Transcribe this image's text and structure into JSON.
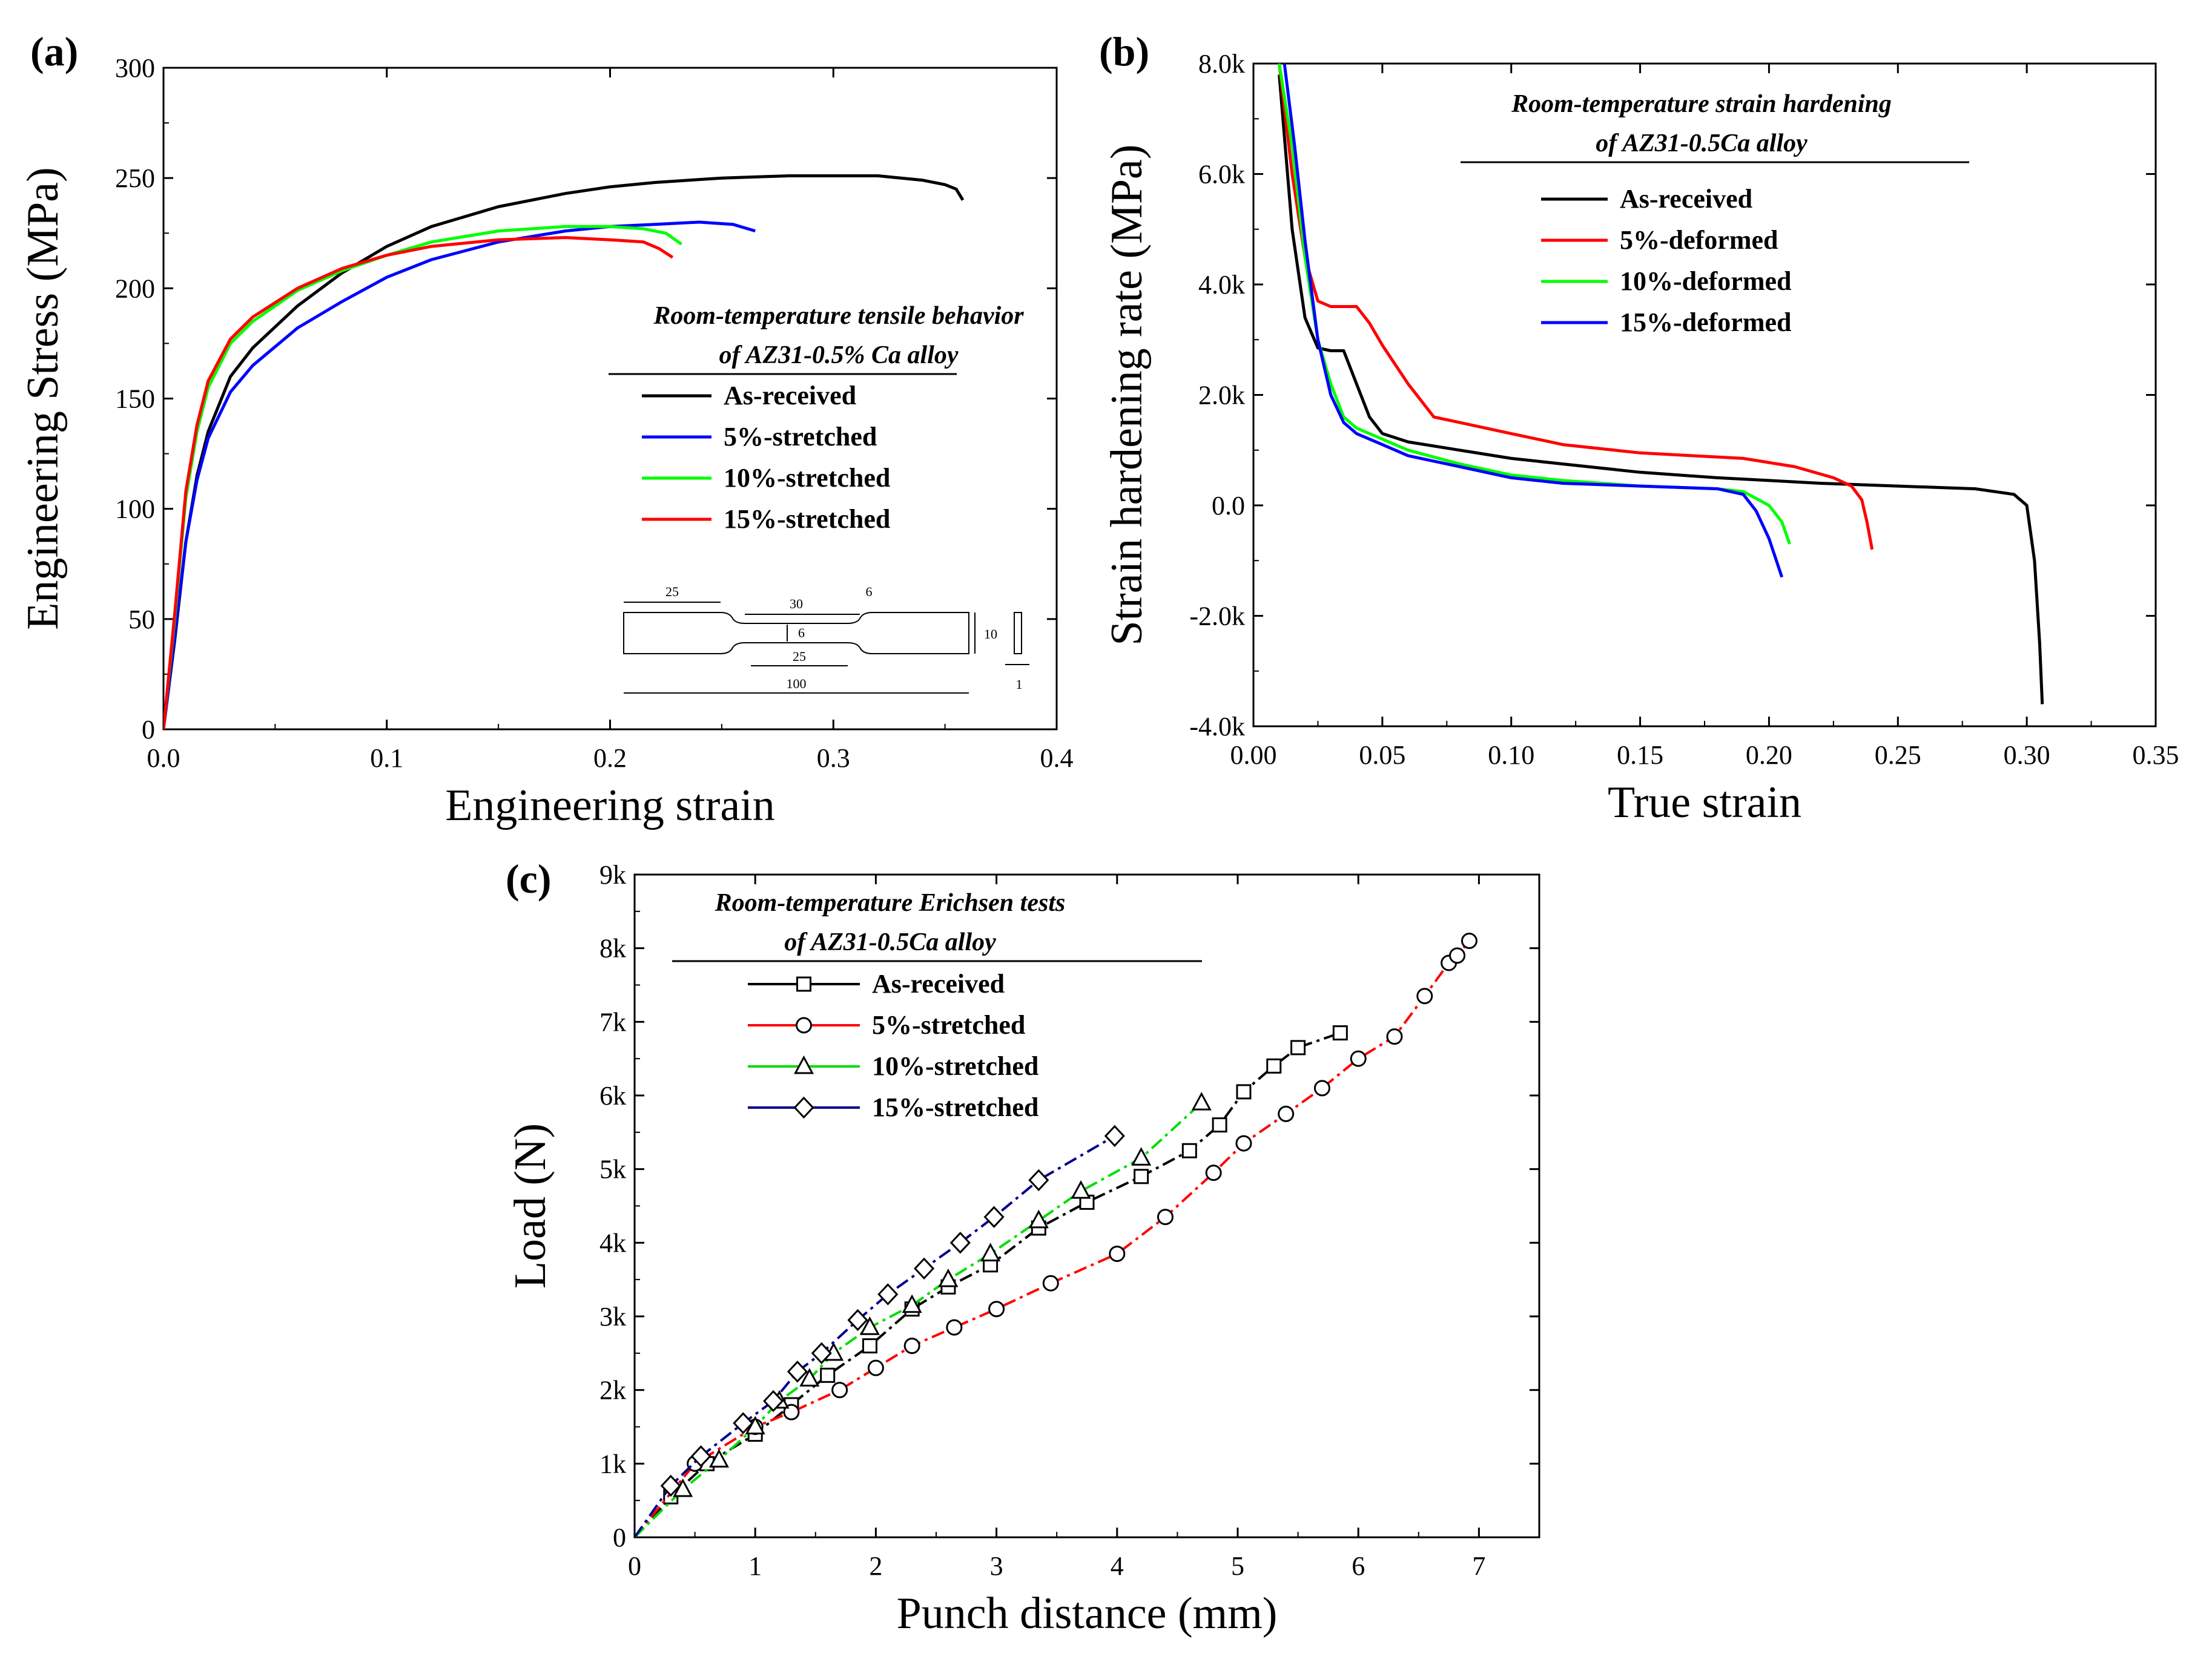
{
  "chart_data": [
    {
      "id": "a",
      "type": "line",
      "panel_label": "(a)",
      "xlabel": "Engineering strain",
      "ylabel": "Engineering Stress (MPa)",
      "xlim": [
        0.0,
        0.4
      ],
      "ylim": [
        0,
        300
      ],
      "xticks": [
        "0.0",
        "0.1",
        "0.2",
        "0.3",
        "0.4"
      ],
      "yticks": [
        "0",
        "50",
        "100",
        "150",
        "200",
        "250",
        "300"
      ],
      "legend_title": [
        "Room-temperature tensile behavior",
        "of AZ31-0.5% Ca alloy"
      ],
      "legend_position": "center-right",
      "series": [
        {
          "name": "As-received",
          "color": "#000000",
          "x": [
            0.0,
            0.005,
            0.01,
            0.015,
            0.02,
            0.03,
            0.04,
            0.06,
            0.08,
            0.1,
            0.12,
            0.15,
            0.18,
            0.2,
            0.22,
            0.25,
            0.28,
            0.3,
            0.32,
            0.34,
            0.35,
            0.355,
            0.358
          ],
          "y": [
            0,
            40,
            85,
            115,
            135,
            160,
            173,
            192,
            207,
            219,
            228,
            237,
            243,
            246,
            248,
            250,
            251,
            251,
            251,
            249,
            247,
            245,
            240
          ]
        },
        {
          "name": "5%-stretched",
          "color": "#0000ff",
          "x": [
            0.0,
            0.005,
            0.01,
            0.015,
            0.02,
            0.03,
            0.04,
            0.06,
            0.08,
            0.1,
            0.12,
            0.15,
            0.18,
            0.2,
            0.22,
            0.24,
            0.255,
            0.265
          ],
          "y": [
            0,
            42,
            85,
            113,
            132,
            153,
            165,
            182,
            194,
            205,
            213,
            221,
            226,
            228,
            229,
            230,
            229,
            226
          ]
        },
        {
          "name": "10%-stretched",
          "color": "#00ff00",
          "x": [
            0.0,
            0.005,
            0.01,
            0.015,
            0.02,
            0.03,
            0.04,
            0.06,
            0.08,
            0.1,
            0.12,
            0.15,
            0.18,
            0.2,
            0.215,
            0.225,
            0.232
          ],
          "y": [
            0,
            50,
            105,
            135,
            155,
            175,
            185,
            199,
            208,
            215,
            221,
            226,
            228,
            228,
            227,
            225,
            220
          ]
        },
        {
          "name": "15%-stretched",
          "color": "#ff0000",
          "x": [
            0.0,
            0.005,
            0.01,
            0.015,
            0.02,
            0.03,
            0.04,
            0.06,
            0.08,
            0.1,
            0.12,
            0.15,
            0.18,
            0.2,
            0.215,
            0.222,
            0.228
          ],
          "y": [
            0,
            52,
            108,
            138,
            158,
            177,
            187,
            200,
            209,
            215,
            219,
            222,
            223,
            222,
            221,
            218,
            214
          ]
        }
      ],
      "inset": {
        "dims": [
          "25",
          "30",
          "6",
          "6",
          "25",
          "10",
          "100",
          "1"
        ]
      }
    },
    {
      "id": "b",
      "type": "line",
      "panel_label": "(b)",
      "xlabel": "True strain",
      "ylabel": "Strain hardening rate (MPa)",
      "xlim": [
        0.0,
        0.35
      ],
      "ylim": [
        -4000,
        8000
      ],
      "xticks": [
        "0.00",
        "0.05",
        "0.10",
        "0.15",
        "0.20",
        "0.25",
        "0.30",
        "0.35"
      ],
      "yticks": [
        "-4.0k",
        "-2.0k",
        "0.0",
        "2.0k",
        "4.0k",
        "6.0k",
        "8.0k"
      ],
      "legend_title": [
        "Room-temperature strain hardening",
        "of AZ31-0.5Ca alloy"
      ],
      "legend_position": "top-right",
      "series": [
        {
          "name": "As-received",
          "color": "#000000",
          "x": [
            0.01,
            0.015,
            0.02,
            0.025,
            0.03,
            0.035,
            0.04,
            0.045,
            0.05,
            0.06,
            0.08,
            0.1,
            0.12,
            0.15,
            0.18,
            0.2,
            0.22,
            0.25,
            0.28,
            0.295,
            0.3,
            0.303,
            0.305,
            0.306
          ],
          "y": [
            7800,
            5000,
            3400,
            2850,
            2800,
            2800,
            2200,
            1600,
            1300,
            1150,
            1000,
            850,
            750,
            600,
            500,
            450,
            400,
            350,
            300,
            200,
            0,
            -1000,
            -2500,
            -3600
          ]
        },
        {
          "name": "5%-deformed",
          "color": "#ff0000",
          "x": [
            0.01,
            0.015,
            0.02,
            0.025,
            0.03,
            0.035,
            0.04,
            0.045,
            0.05,
            0.06,
            0.07,
            0.08,
            0.1,
            0.12,
            0.15,
            0.17,
            0.19,
            0.21,
            0.225,
            0.232,
            0.236,
            0.238,
            0.24
          ],
          "y": [
            8000,
            6000,
            4500,
            3700,
            3600,
            3600,
            3600,
            3300,
            2900,
            2200,
            1600,
            1500,
            1300,
            1100,
            950,
            900,
            850,
            700,
            500,
            350,
            100,
            -300,
            -800
          ]
        },
        {
          "name": "10%-deformed",
          "color": "#00ff00",
          "x": [
            0.01,
            0.015,
            0.02,
            0.025,
            0.03,
            0.035,
            0.04,
            0.05,
            0.06,
            0.08,
            0.1,
            0.12,
            0.15,
            0.18,
            0.19,
            0.2,
            0.205,
            0.208
          ],
          "y": [
            8000,
            6500,
            4500,
            3000,
            2200,
            1600,
            1400,
            1200,
            1000,
            750,
            550,
            450,
            350,
            300,
            250,
            0,
            -300,
            -700
          ]
        },
        {
          "name": "15%-deformed",
          "color": "#0000ff",
          "x": [
            0.012,
            0.016,
            0.02,
            0.025,
            0.03,
            0.035,
            0.04,
            0.05,
            0.06,
            0.08,
            0.1,
            0.12,
            0.15,
            0.18,
            0.19,
            0.195,
            0.2,
            0.205
          ],
          "y": [
            8000,
            6500,
            4800,
            3000,
            2000,
            1500,
            1300,
            1100,
            900,
            700,
            500,
            400,
            350,
            300,
            200,
            -100,
            -600,
            -1300
          ]
        }
      ]
    },
    {
      "id": "c",
      "type": "line",
      "panel_label": "(c)",
      "xlabel": "Punch distance (mm)",
      "ylabel": "Load (N)",
      "xlim": [
        0,
        7.5
      ],
      "ylim": [
        0,
        9000
      ],
      "xticks": [
        "0",
        "1",
        "2",
        "3",
        "4",
        "5",
        "6",
        "7"
      ],
      "yticks": [
        "0",
        "1k",
        "2k",
        "3k",
        "4k",
        "5k",
        "6k",
        "7k",
        "8k",
        "9k"
      ],
      "legend_title": [
        "Room-temperature Erichsen tests",
        "of AZ31-0.5Ca alloy"
      ],
      "legend_position": "top-left",
      "series": [
        {
          "name": "As-received",
          "color": "#000000",
          "marker": "square",
          "x": [
            0.0,
            0.3,
            0.6,
            1.0,
            1.3,
            1.6,
            1.95,
            2.3,
            2.6,
            2.95,
            3.35,
            3.75,
            4.2,
            4.6,
            4.85,
            5.05,
            5.3,
            5.5,
            5.85
          ],
          "y": [
            0,
            550,
            1000,
            1400,
            1800,
            2200,
            2600,
            3100,
            3400,
            3700,
            4200,
            4550,
            4900,
            5250,
            5600,
            6050,
            6400,
            6650,
            6850
          ]
        },
        {
          "name": "5%-stretched",
          "color": "#ff0000",
          "marker": "circle",
          "x": [
            0.0,
            0.5,
            1.0,
            1.3,
            1.7,
            2.0,
            2.3,
            2.65,
            3.0,
            3.45,
            4.0,
            4.4,
            4.8,
            5.05,
            5.4,
            5.7,
            6.0,
            6.3,
            6.55,
            6.75,
            6.82,
            6.92
          ],
          "y": [
            0,
            1000,
            1500,
            1700,
            2000,
            2300,
            2600,
            2850,
            3100,
            3450,
            3850,
            4350,
            4950,
            5350,
            5750,
            6100,
            6500,
            6800,
            7350,
            7800,
            7900,
            8100
          ]
        },
        {
          "name": "10%-stretched",
          "color": "#00dd00",
          "marker": "triangle",
          "x": [
            0.0,
            0.4,
            0.7,
            1.0,
            1.2,
            1.45,
            1.65,
            1.95,
            2.3,
            2.6,
            2.95,
            3.35,
            3.7,
            4.2,
            4.7
          ],
          "y": [
            0,
            650,
            1050,
            1500,
            1850,
            2150,
            2500,
            2850,
            3150,
            3500,
            3850,
            4300,
            4700,
            5150,
            5900
          ]
        },
        {
          "name": "15%-stretched",
          "color": "#00008b",
          "marker": "diamond",
          "x": [
            0.0,
            0.3,
            0.55,
            0.9,
            1.15,
            1.35,
            1.55,
            1.85,
            2.1,
            2.4,
            2.7,
            2.98,
            3.35,
            3.98
          ],
          "y": [
            0,
            700,
            1100,
            1550,
            1850,
            2250,
            2500,
            2950,
            3300,
            3650,
            4000,
            4350,
            4850,
            5450
          ]
        }
      ]
    }
  ]
}
